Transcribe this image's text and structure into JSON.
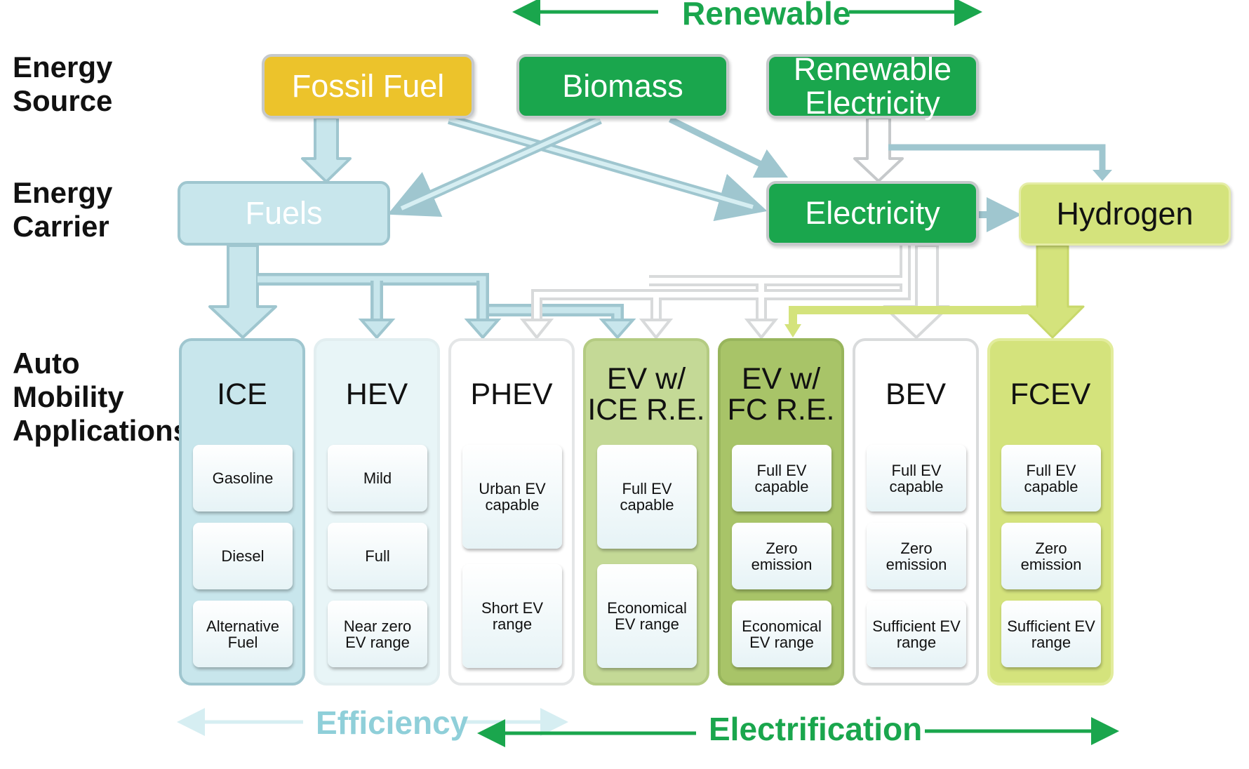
{
  "top_axis": {
    "label": "Renewable",
    "color": "#1aa64d"
  },
  "row_labels": {
    "source": [
      "Energy",
      "Source"
    ],
    "carrier": [
      "Energy",
      "Carrier"
    ],
    "applications": [
      "Auto",
      "Mobility",
      "Applications"
    ]
  },
  "sources": {
    "fossil": {
      "label": "Fossil Fuel",
      "color": "#ecc32b"
    },
    "biomass": {
      "label": "Biomass",
      "color": "#1aa64d"
    },
    "renewable": {
      "label": [
        "Renewable",
        "Electricity"
      ],
      "color": "#1aa64d"
    }
  },
  "carriers": {
    "fuels": {
      "label": "Fuels",
      "color": "#c8e6ec"
    },
    "electricity": {
      "label": "Electricity",
      "color": "#1aa64d"
    },
    "hydrogen": {
      "label": "Hydrogen",
      "color": "#d4e37c"
    }
  },
  "applications": [
    {
      "title": [
        "ICE"
      ],
      "color": "#c8e6ec",
      "items": [
        [
          "Gasoline"
        ],
        [
          "Diesel"
        ],
        [
          "Alternative",
          "Fuel"
        ]
      ]
    },
    {
      "title": [
        "HEV"
      ],
      "color": "#e8f5f7",
      "items": [
        [
          "Mild"
        ],
        [
          "Full"
        ],
        [
          "Near zero",
          "EV range"
        ]
      ]
    },
    {
      "title": [
        "PHEV"
      ],
      "color": "#ffffff",
      "items": [
        [
          "Urban EV",
          "capable"
        ],
        [
          "Short EV",
          "range"
        ]
      ]
    },
    {
      "title": [
        "EV w/",
        "ICE R.E."
      ],
      "color": "#c4d996",
      "items": [
        [
          "Full EV",
          "capable"
        ],
        [
          "Economical",
          "EV range"
        ]
      ]
    },
    {
      "title": [
        "EV w/",
        "FC R.E."
      ],
      "color": "#a8c468",
      "items": [
        [
          "Full EV",
          "capable"
        ],
        [
          "Zero",
          "emission"
        ],
        [
          "Economical",
          "EV range"
        ]
      ]
    },
    {
      "title": [
        "BEV"
      ],
      "color": "#ffffff",
      "items": [
        [
          "Full EV",
          "capable"
        ],
        [
          "Zero",
          "emission"
        ],
        [
          "Sufficient EV",
          "range"
        ]
      ]
    },
    {
      "title": [
        "FCEV"
      ],
      "color": "#d4e37c",
      "items": [
        [
          "Full EV",
          "capable"
        ],
        [
          "Zero",
          "emission"
        ],
        [
          "Sufficient EV",
          "range"
        ]
      ]
    }
  ],
  "bottom_axes": {
    "efficiency": {
      "label": "Efficiency",
      "color": "#8fcfd9"
    },
    "electrification": {
      "label": "Electrification",
      "color": "#1aa64d"
    }
  }
}
